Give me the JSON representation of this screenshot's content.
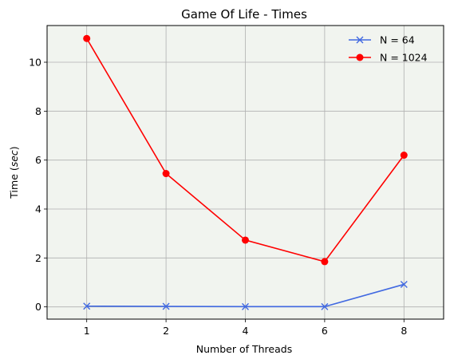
{
  "chart_data": {
    "type": "line",
    "title": "Game Of Life - Times",
    "xlabel": "Number of Threads",
    "ylabel_prefix": "Time (",
    "ylabel_unit": "sec",
    "ylabel_suffix": ")",
    "categories": [
      "1",
      "2",
      "4",
      "6",
      "8"
    ],
    "ylim": [
      -0.5,
      11.5
    ],
    "yticks": [
      0,
      2,
      4,
      6,
      8,
      10
    ],
    "grid": true,
    "legend_position": "top-right",
    "plot_background": "#f1f4ef",
    "grid_color": "#b0b0b0",
    "series": [
      {
        "name": "N = 64",
        "color": "#4169e1",
        "marker": "x",
        "values": [
          0.03,
          0.02,
          0.01,
          0.01,
          0.92
        ]
      },
      {
        "name": "N = 1024",
        "color": "#ff0000",
        "marker": "o",
        "values": [
          10.97,
          5.45,
          2.73,
          1.85,
          6.2
        ]
      }
    ]
  }
}
